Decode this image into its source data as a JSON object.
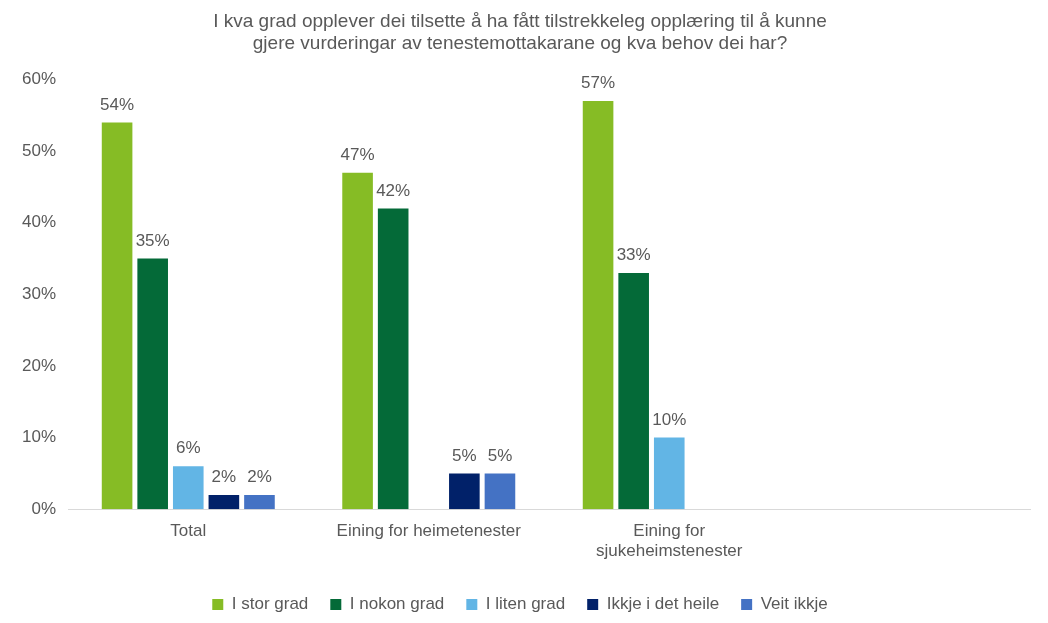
{
  "chart_data": {
    "type": "bar",
    "title": "I kva grad opplever dei tilsette å ha fått tilstrekkeleg opplæring til å kunne gjere vurderingar av tenestemottakarane og kva behov dei har?",
    "categories": [
      "Total",
      "Eining for heimetenester",
      "Eining for sjukeheimstenester",
      null
    ],
    "series": [
      {
        "name": "I stor grad",
        "color": "#86bc25",
        "values": [
          54,
          47,
          57,
          null
        ],
        "value_labels": [
          "54%",
          "47%",
          "57%",
          null
        ]
      },
      {
        "name": "I nokon grad",
        "color": "#046a38",
        "values": [
          35,
          42,
          33,
          null
        ],
        "value_labels": [
          "35%",
          "42%",
          "33%",
          null
        ]
      },
      {
        "name": "I liten grad",
        "color": "#62b5e5",
        "values": [
          6,
          null,
          10,
          null
        ],
        "value_labels": [
          "6%",
          null,
          "10%",
          null
        ]
      },
      {
        "name": "Ikkje i det heile",
        "color": "#012169",
        "values": [
          2,
          5,
          null,
          null
        ],
        "value_labels": [
          "2%",
          "5%",
          null,
          null
        ]
      },
      {
        "name": "Veit ikkje",
        "color": "#4472c4",
        "values": [
          2,
          5,
          null,
          null
        ],
        "value_labels": [
          "2%",
          "5%",
          null,
          null
        ]
      }
    ],
    "ylim": [
      0,
      60
    ],
    "yticks": [
      {
        "value": 0,
        "label": "0%"
      },
      {
        "value": 10,
        "label": "10%"
      },
      {
        "value": 20,
        "label": "20%"
      },
      {
        "value": 30,
        "label": "30%"
      },
      {
        "value": 40,
        "label": "40%"
      },
      {
        "value": 50,
        "label": "50%"
      },
      {
        "value": 60,
        "label": "60%"
      }
    ],
    "grid": false,
    "legend": "bottom"
  }
}
